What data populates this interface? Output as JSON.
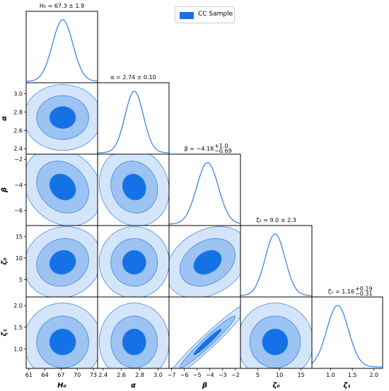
{
  "legend": {
    "label": "CC Sample",
    "color": "#1f6fe0"
  },
  "colors": {
    "line": "#2f7de1",
    "fill_outer": "#d4e5fa",
    "fill_mid": "#9cc3f2",
    "fill_inner": "#1572e6"
  },
  "chart_data": {
    "type": "corner",
    "parameters": [
      {
        "key": "H0",
        "label": "H₀",
        "title": "H₀ = 67.3 ± 1.9",
        "mean": 67.3,
        "sigma": 1.9,
        "range": [
          60.5,
          73.8
        ],
        "ticks": [
          61,
          64,
          67,
          70,
          73
        ]
      },
      {
        "key": "alpha",
        "label": "α",
        "title": "α = 2.74 ± 0.10",
        "mean": 2.74,
        "sigma": 0.1,
        "range": [
          2.34,
          3.12
        ],
        "ticks": [
          2.4,
          2.6,
          2.8,
          3.0
        ],
        "tick_labels": [
          "2.4",
          "2.6",
          "2.8",
          "3.0"
        ]
      },
      {
        "key": "beta",
        "label": "β",
        "title": "β = −4.18",
        "title_sup": "+1.0",
        "title_sub": "−0.69",
        "mean": -4.18,
        "sigma": 0.85,
        "range": [
          -7.2,
          -1.6
        ],
        "ticks": [
          -7,
          -6,
          -5,
          -4,
          -3,
          -2
        ]
      },
      {
        "key": "zeta0",
        "label": "ζ₀",
        "title": "ζ₀ = 9.0 ± 2.3",
        "mean": 9.0,
        "sigma": 2.3,
        "range": [
          1.0,
          17.5
        ],
        "ticks": [
          5,
          10,
          15
        ]
      },
      {
        "key": "zeta1",
        "label": "ζ₁",
        "title": "ζ₁ = 1.16",
        "title_sup": "+0.19",
        "title_sub": "−0.31",
        "mean": 1.16,
        "sigma": 0.25,
        "range": [
          0.55,
          2.2
        ],
        "ticks": [
          1.0,
          1.5,
          2.0
        ],
        "tick_labels": [
          "1.0",
          "1.5",
          "2.0"
        ]
      }
    ],
    "y_ticks": {
      "alpha": {
        "values": [
          2.4,
          2.6,
          2.8,
          3.0
        ],
        "labels": [
          "2.4",
          "2.6",
          "2.8",
          "3.0"
        ]
      },
      "beta": {
        "values": [
          -6,
          -4,
          -2
        ],
        "labels": [
          "−6",
          "−4",
          "−2"
        ]
      },
      "zeta0": {
        "values": [
          5,
          10,
          15
        ],
        "labels": [
          "5",
          "10",
          "15"
        ]
      },
      "zeta1": {
        "values": [
          1.0,
          1.5,
          2.0
        ],
        "labels": [
          "1.0",
          "1.5",
          "2.0"
        ]
      }
    },
    "correlations": {
      "H0|beta": -0.2,
      "alpha|beta": -0.1,
      "beta|zeta0": 0.3,
      "beta|zeta1": 0.97,
      "H0|zeta0": 0.1
    },
    "contour_levels_sigma": [
      1,
      2,
      3
    ],
    "legend_position": "top-right"
  }
}
